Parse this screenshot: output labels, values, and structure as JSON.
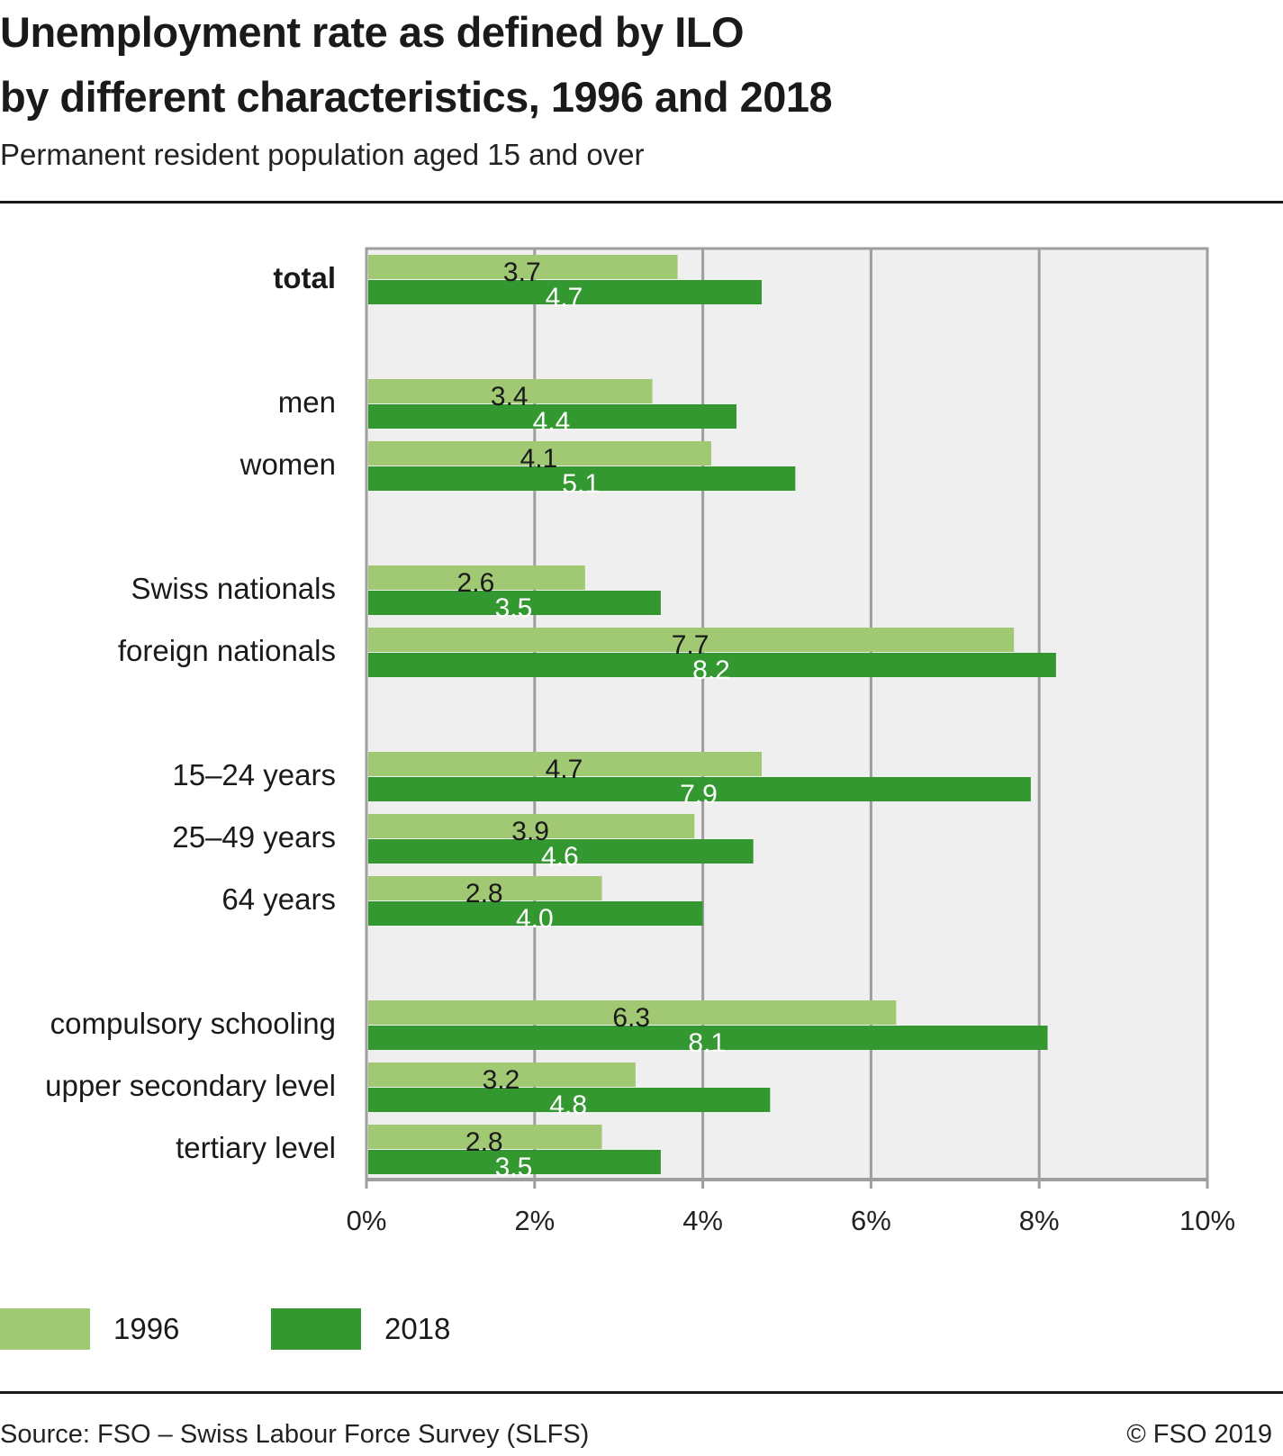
{
  "header": {
    "title_line1": "Unemployment rate as defined by ILO",
    "title_line2": "by different characteristics, 1996 and 2018",
    "subtitle": "Permanent resident population aged 15 and over"
  },
  "footer": {
    "source": "Source: FSO – Swiss Labour Force Survey (SLFS)",
    "copyright": "© FSO 2019"
  },
  "colors": {
    "series_1996": "#a1c973",
    "series_2018": "#339830",
    "plot_background": "#efefef",
    "grid": "#9e9e9e",
    "label_1996": "#1a1a1a",
    "label_2018": "#ffffff"
  },
  "chart_data": {
    "type": "bar",
    "orientation": "horizontal",
    "title": "Unemployment rate as defined by ILO by different characteristics, 1996 and 2018",
    "subtitle": "Permanent resident population aged 15 and over",
    "xlabel": "",
    "ylabel": "",
    "xlim": [
      0,
      10
    ],
    "x_ticks": [
      0,
      2,
      4,
      6,
      8,
      10
    ],
    "x_tick_labels": [
      "0%",
      "2%",
      "4%",
      "6%",
      "8%",
      "10%"
    ],
    "grid": true,
    "legend_position": "bottom-left",
    "groups": [
      {
        "categories": [
          "total"
        ],
        "bold": true
      },
      {
        "categories": [
          "men",
          "women"
        ]
      },
      {
        "categories": [
          "Swiss nationals",
          "foreign nationals"
        ]
      },
      {
        "categories": [
          "15–24 years",
          "25–49 years",
          "64 years"
        ]
      },
      {
        "categories": [
          "compulsory schooling",
          "upper secondary level",
          "tertiary level"
        ]
      }
    ],
    "categories": [
      "total",
      "men",
      "women",
      "Swiss nationals",
      "foreign nationals",
      "15–24 years",
      "25–49 years",
      "64 years",
      "compulsory schooling",
      "upper secondary level",
      "tertiary level"
    ],
    "series": [
      {
        "name": "1996",
        "values": [
          3.7,
          3.4,
          4.1,
          2.6,
          7.7,
          4.7,
          3.9,
          2.8,
          6.3,
          3.2,
          2.8
        ]
      },
      {
        "name": "2018",
        "values": [
          4.7,
          4.4,
          5.1,
          3.5,
          8.2,
          7.9,
          4.6,
          4.0,
          8.1,
          4.8,
          3.5
        ]
      }
    ],
    "value_labels": [
      [
        "3.7",
        "3.4",
        "4.1",
        "2.6",
        "7.7",
        "4.7",
        "3.9",
        "2.8",
        "6.3",
        "3.2",
        "2.8"
      ],
      [
        "4.7",
        "4.4",
        "5.1",
        "3.5",
        "8.2",
        "7.9",
        "4.6",
        "4.0",
        "8.1",
        "4.8",
        "3.5"
      ]
    ]
  }
}
